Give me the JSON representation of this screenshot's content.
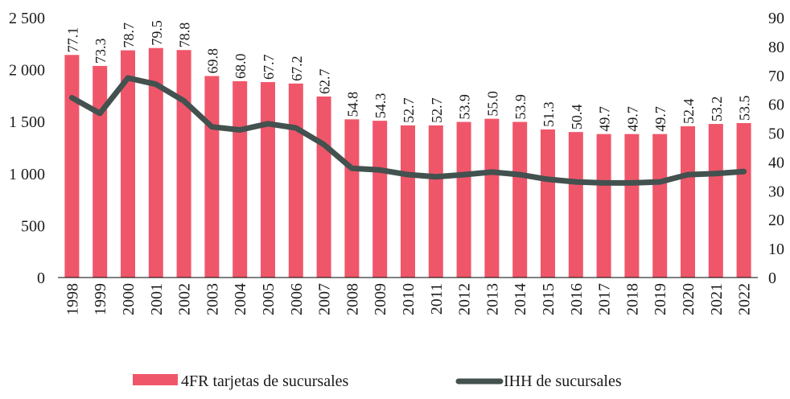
{
  "chart_data": {
    "type": "bar",
    "categories": [
      "1998",
      "1999",
      "2000",
      "2001",
      "2002",
      "2003",
      "2004",
      "2005",
      "2006",
      "2007",
      "2008",
      "2009",
      "2010",
      "2011",
      "2012",
      "2013",
      "2014",
      "2015",
      "2016",
      "2017",
      "2018",
      "2019",
      "2020",
      "2021",
      "2022"
    ],
    "series": [
      {
        "name": "4FR tarjetas de sucursales",
        "type": "bar",
        "axis": "left",
        "color": "#F0566A",
        "values": [
          77.1,
          73.3,
          78.7,
          79.5,
          78.8,
          69.8,
          68.0,
          67.7,
          67.2,
          62.7,
          54.8,
          54.3,
          52.7,
          52.7,
          53.9,
          55.0,
          53.9,
          51.3,
          50.4,
          49.7,
          49.7,
          49.7,
          52.4,
          53.2,
          53.5
        ],
        "labels": [
          "77.1",
          "73.3",
          "78.7",
          "79.5",
          "78.8",
          "69.8",
          "68.0",
          "67.7",
          "67.2",
          "62.7",
          "54.8",
          "54.3",
          "52.7",
          "52.7",
          "53.9",
          "55.0",
          "53.9",
          "51.3",
          "50.4",
          "49.7",
          "49.7",
          "49.7",
          "52.4",
          "53.2",
          "53.5"
        ]
      },
      {
        "name": "IHH de sucursales",
        "type": "line",
        "axis": "left",
        "color": "#43514F",
        "values": [
          1730,
          1580,
          1920,
          1860,
          1700,
          1450,
          1420,
          1480,
          1440,
          1280,
          1050,
          1035,
          990,
          970,
          990,
          1015,
          990,
          945,
          920,
          910,
          910,
          920,
          990,
          1000,
          1020
        ]
      }
    ],
    "yaxis_left": {
      "ylim": [
        0,
        2500
      ],
      "ticks": [
        "0",
        "500",
        "1 000",
        "1 500",
        "2 000",
        "2 500"
      ]
    },
    "yaxis_right": {
      "ylim": [
        0,
        90
      ],
      "ticks": [
        "0",
        "10",
        "20",
        "30",
        "40",
        "50",
        "60",
        "70",
        "80",
        "90"
      ]
    },
    "legend": {
      "placement": "bottom"
    },
    "grid": false
  }
}
